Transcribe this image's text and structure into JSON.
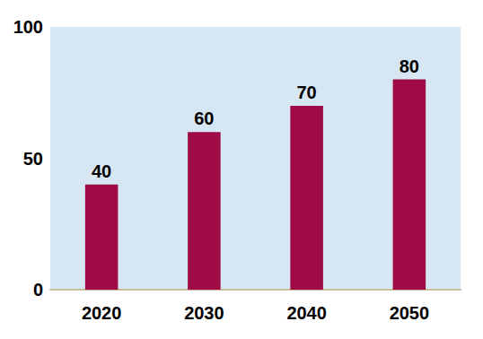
{
  "chart_data": {
    "type": "bar",
    "categories": [
      "2020",
      "2030",
      "2040",
      "2050"
    ],
    "values": [
      40,
      60,
      70,
      80
    ],
    "color": "#9e0b46",
    "ylim": [
      0,
      100
    ],
    "yticks": [
      0,
      50,
      100
    ],
    "data_labels": true,
    "grid": false
  }
}
